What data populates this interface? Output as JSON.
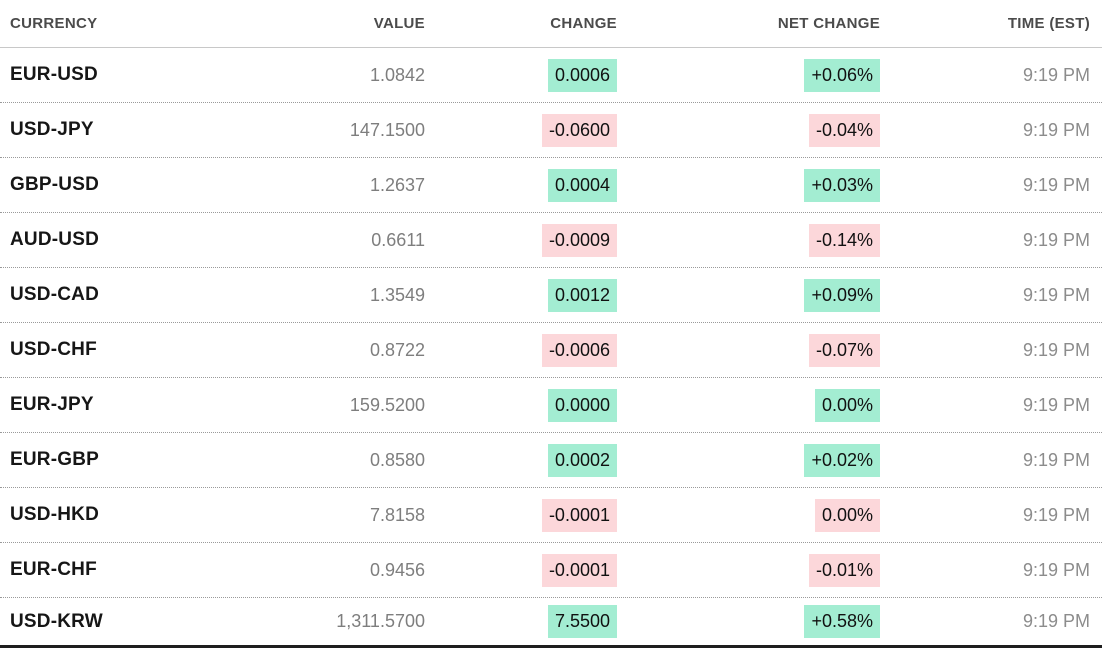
{
  "table": {
    "columns": [
      {
        "label": "CURRENCY",
        "align": "left"
      },
      {
        "label": "VALUE",
        "align": "right"
      },
      {
        "label": "CHANGE",
        "align": "right"
      },
      {
        "label": "NET CHANGE",
        "align": "right"
      },
      {
        "label": "TIME (EST)",
        "align": "right"
      }
    ],
    "rows": [
      {
        "currency": "EUR-USD",
        "value": "1.0842",
        "change": "0.0006",
        "net_change": "+0.06%",
        "time": "9:19 PM",
        "direction": "up"
      },
      {
        "currency": "USD-JPY",
        "value": "147.1500",
        "change": "-0.0600",
        "net_change": "-0.04%",
        "time": "9:19 PM",
        "direction": "down"
      },
      {
        "currency": "GBP-USD",
        "value": "1.2637",
        "change": "0.0004",
        "net_change": "+0.03%",
        "time": "9:19 PM",
        "direction": "up"
      },
      {
        "currency": "AUD-USD",
        "value": "0.6611",
        "change": "-0.0009",
        "net_change": "-0.14%",
        "time": "9:19 PM",
        "direction": "down"
      },
      {
        "currency": "USD-CAD",
        "value": "1.3549",
        "change": "0.0012",
        "net_change": "+0.09%",
        "time": "9:19 PM",
        "direction": "up"
      },
      {
        "currency": "USD-CHF",
        "value": "0.8722",
        "change": "-0.0006",
        "net_change": "-0.07%",
        "time": "9:19 PM",
        "direction": "down"
      },
      {
        "currency": "EUR-JPY",
        "value": "159.5200",
        "change": "0.0000",
        "net_change": "0.00%",
        "time": "9:19 PM",
        "direction": "up"
      },
      {
        "currency": "EUR-GBP",
        "value": "0.8580",
        "change": "0.0002",
        "net_change": "+0.02%",
        "time": "9:19 PM",
        "direction": "up"
      },
      {
        "currency": "USD-HKD",
        "value": "7.8158",
        "change": "-0.0001",
        "net_change": "0.00%",
        "time": "9:19 PM",
        "direction": "down"
      },
      {
        "currency": "EUR-CHF",
        "value": "0.9456",
        "change": "-0.0001",
        "net_change": "-0.01%",
        "time": "9:19 PM",
        "direction": "down"
      },
      {
        "currency": "USD-KRW",
        "value": "1,311.5700",
        "change": "7.5500",
        "net_change": "+0.58%",
        "time": "9:19 PM",
        "direction": "up"
      }
    ]
  },
  "colors": {
    "positive_bg": "#a3edd2",
    "negative_bg": "#fcd7da",
    "currency_text": "#161616",
    "value_text": "#7e7e7e",
    "time_text": "#8c8c8c",
    "header_text": "#4b4b4b",
    "header_border": "#c8c8c8",
    "row_border": "#9a9a9a",
    "bottom_bar": "#1e1e1e"
  }
}
